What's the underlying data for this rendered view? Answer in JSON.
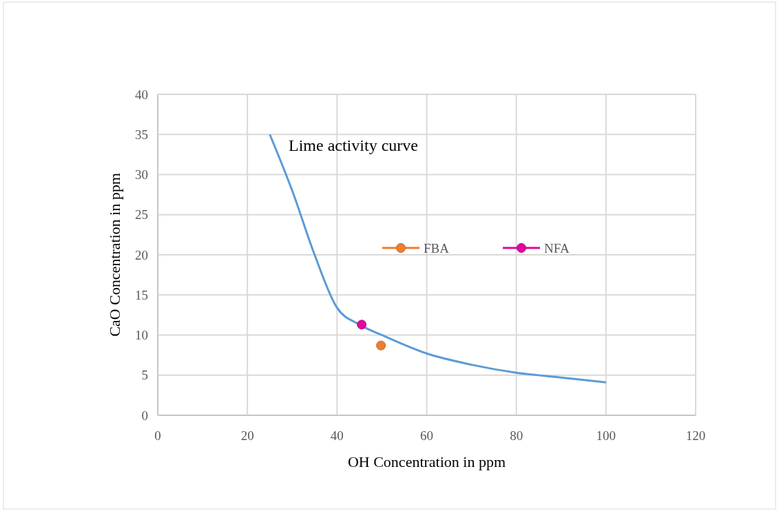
{
  "chart_data": {
    "type": "line",
    "xlabel": "OH Concentration in ppm",
    "ylabel": "CaO Concentration in ppm",
    "xlim": [
      0,
      120
    ],
    "xticks": [
      0,
      20,
      40,
      60,
      80,
      100,
      120
    ],
    "ylim": [
      0,
      40
    ],
    "yticks": [
      0,
      5,
      10,
      15,
      20,
      25,
      30,
      35,
      40
    ],
    "grid": true,
    "legend": "center",
    "annotations": [
      "Lime activity curve"
    ],
    "series": [
      {
        "color": "#5b9bd5",
        "marker": "none",
        "x": [
          25,
          30,
          35,
          40,
          45,
          50,
          60,
          70,
          80,
          90,
          100
        ],
        "values": [
          35,
          28,
          20,
          13.4,
          11.3,
          10,
          7.7,
          6.3,
          5.3,
          4.7,
          4.1
        ]
      },
      {
        "type": "scatter",
        "name": "FBA",
        "color": "#ed7d31",
        "marker": "circle",
        "x": [
          49.8
        ],
        "values": [
          8.7
        ]
      },
      {
        "type": "scatter",
        "name": "NFA",
        "color": "#e0089b",
        "marker": "circle",
        "x": [
          45.5
        ],
        "values": [
          11.3
        ]
      }
    ]
  }
}
